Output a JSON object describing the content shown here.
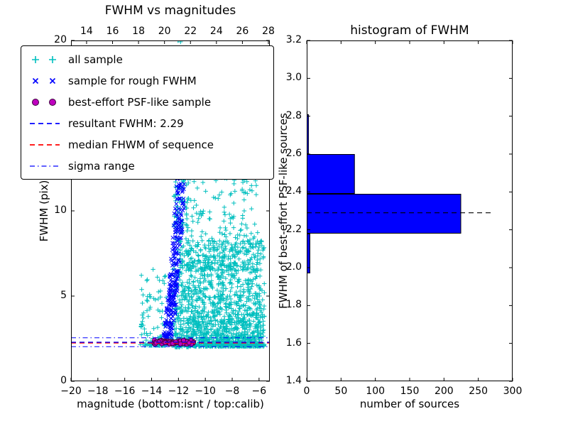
{
  "chart_data": [
    {
      "type": "scatter",
      "title": "FWHM vs magnitudes",
      "xlabel": "magnitude (bottom:isnt / top:calib)",
      "ylabel": "FWHM (pix)",
      "xlim_bottom": [
        -20,
        -5.2
      ],
      "xlim_top": [
        12.8,
        28.11
      ],
      "ylim": [
        0,
        20
      ],
      "xticks_bottom": {
        "values": [
          -20,
          -18,
          -16,
          -14,
          -12,
          -10,
          -8,
          -6
        ],
        "labels": [
          "−20",
          "−18",
          "−16",
          "−14",
          "−12",
          "−10",
          "−8",
          "−6"
        ]
      },
      "xticks_top": {
        "values": [
          14,
          16,
          18,
          20,
          22,
          24,
          26,
          28
        ],
        "labels": [
          "14",
          "16",
          "18",
          "20",
          "22",
          "24",
          "26",
          "28"
        ]
      },
      "yticks": {
        "values": [
          0,
          5,
          10,
          15,
          20
        ],
        "labels": [
          "0",
          "5",
          "10",
          "15",
          "20"
        ]
      },
      "legend": [
        {
          "label": "all sample",
          "marker": "plus",
          "color": "#00bfbf"
        },
        {
          "label": "sample for rough FWHM",
          "marker": "x",
          "color": "#0000ff"
        },
        {
          "label": "best-effort PSF-like sample",
          "marker": "circle",
          "color": "#bf00bf"
        },
        {
          "label": "resultant FWHM: 2.29",
          "marker": "dashed",
          "color": "#0000ff"
        },
        {
          "label": "median FHWM of sequence",
          "marker": "dashed",
          "color": "#ff0000"
        },
        {
          "label": "sigma range",
          "marker": "dashdot",
          "color": "#0000ff"
        }
      ],
      "hlines": [
        {
          "name": "sigma-upper",
          "y": 2.55,
          "style": "dashdot",
          "color": "#0000ff",
          "width": 1
        },
        {
          "name": "sigma-lower",
          "y": 2.03,
          "style": "dashdot",
          "color": "#0000ff",
          "width": 1
        },
        {
          "name": "median-fwhm",
          "y": 2.25,
          "style": "dashed",
          "color": "#ff0000",
          "width": 1.4
        },
        {
          "name": "resultant-fwhm",
          "y": 2.29,
          "style": "dashed",
          "color": "#0000ff",
          "width": 1.4
        }
      ],
      "series": [
        {
          "name": "all sample",
          "marker": "plus",
          "color": "#00bfbf",
          "clusters": [
            {
              "n": 1300,
              "x": [
                -11.35,
                -5.6
              ],
              "y_base": 2.05,
              "y_spread": 6.2,
              "y_pow": 2.3
            },
            {
              "n": 320,
              "x": [
                -12.35,
                -11.25
              ],
              "y_base": 2.0,
              "y_spread": 18.0,
              "y_pow": 1.6
            },
            {
              "n": 130,
              "x": [
                -14.85,
                -12.35
              ],
              "y_base": 2.1,
              "y_spread": 4.5,
              "y_pow": 2.8
            },
            {
              "n": 280,
              "x": [
                -11.45,
                -6.1
              ],
              "y_base": 6.5,
              "y_spread": 7.0,
              "y_pow": 2.0
            }
          ]
        },
        {
          "name": "sample for rough FWHM",
          "marker": "x",
          "color": "#0000ff",
          "diagonal": {
            "n": 300,
            "x0": -12.95,
            "x1": -11.75,
            "x_jitter": 0.35,
            "y0": 2.2,
            "y_spread": 10.3,
            "y_pow": 1.5
          }
        },
        {
          "name": "best-effort PSF-like sample",
          "marker": "circle",
          "color": "#bf00bf",
          "edge": "#3a003a",
          "band": {
            "n": 85,
            "x": [
              -13.85,
              -10.85
            ],
            "y_center": 2.3,
            "y_jitter": 0.12
          }
        }
      ]
    },
    {
      "type": "bar",
      "orientation": "horizontal",
      "title": "histogram of FWHM",
      "xlabel": "number of sources",
      "ylabel": "FWHM of best-effort PSF-like sources",
      "xlim": [
        0,
        300
      ],
      "ylim": [
        1.4,
        3.2
      ],
      "xticks": {
        "values": [
          0,
          50,
          100,
          150,
          200,
          250,
          300
        ],
        "labels": [
          "0",
          "50",
          "100",
          "150",
          "200",
          "250",
          "300"
        ]
      },
      "yticks": {
        "values": [
          1.4,
          1.6,
          1.8,
          2.0,
          2.2,
          2.4,
          2.6,
          2.8,
          3.0,
          3.2
        ],
        "labels": [
          "1.4",
          "1.6",
          "1.8",
          "2.0",
          "2.2",
          "2.4",
          "2.6",
          "2.8",
          "3.0",
          "3.2"
        ]
      },
      "bar_color": "#0000ff",
      "bar_edge": "#000000",
      "bin_edges": [
        1.97,
        2.18,
        2.39,
        2.6,
        2.81
      ],
      "counts": [
        5,
        225,
        70,
        3
      ],
      "fwhm_line": {
        "value": 2.29,
        "x_end": 270,
        "style": "dashed",
        "color": "#000000"
      }
    }
  ]
}
